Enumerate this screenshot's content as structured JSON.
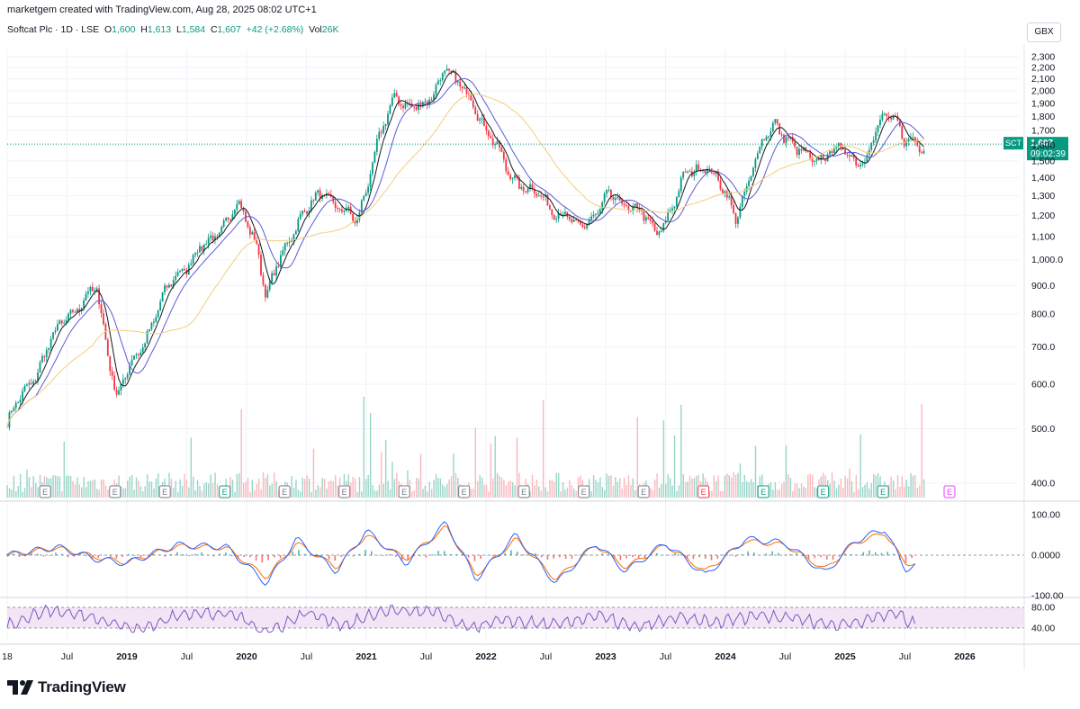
{
  "header": {
    "credit": "marketgem created with TradingView.com, Aug 28, 2025 08:02 UTC+1",
    "symbol_desc": "Softcat Plc · 1D · LSE",
    "open_label": "O",
    "open": "1,600",
    "high_label": "H",
    "high": "1,613",
    "low_label": "L",
    "low": "1,584",
    "close_label": "C",
    "close": "1,607",
    "change": "+42 (+2.68%)",
    "vol_label": "Vol",
    "vol": "26K",
    "currency": "GBX"
  },
  "price_tag": {
    "symbol": "SCT",
    "price": "1,607",
    "countdown": "09:02:39"
  },
  "footer": {
    "logo_text": "TradingView"
  },
  "colors": {
    "up": "#089981",
    "down": "#f23645",
    "ma_fast": "#131722",
    "ma_mid": "#5b5bd6",
    "ma_slow": "#f5cd7a",
    "macd": "#2962ff",
    "signal": "#ff6d00",
    "rsi": "#7e57c2",
    "rsi_band": "#f3e5f5",
    "earnings_gray": "#787b86",
    "earnings_green": "#089981",
    "earnings_red": "#f23645",
    "earnings_future": "#e040fb"
  },
  "chart_data": [
    {
      "type": "line",
      "title": "Softcat Plc · 1D · LSE",
      "scale": "log",
      "xlabel": "",
      "ylabel": "GBX",
      "ylim": [
        360,
        2300
      ],
      "y_ticks": [
        "2,300",
        "2,200",
        "2,100",
        "2,000",
        "1,900",
        "1,800",
        "1,700",
        "1,600",
        "1,500",
        "1,400",
        "1,300",
        "1,200",
        "1,100",
        "1,000.0",
        "900.0",
        "800.0",
        "700.0",
        "600.0",
        "500.0",
        "400.0"
      ],
      "y_tick_values": [
        2300,
        2200,
        2100,
        2000,
        1900,
        1800,
        1700,
        1600,
        1500,
        1400,
        1300,
        1200,
        1100,
        1000,
        900,
        800,
        700,
        600,
        500,
        400
      ],
      "x_ticks": [
        "18",
        "Jul",
        "2019",
        "Jul",
        "2020",
        "Jul",
        "2021",
        "Jul",
        "2022",
        "Jul",
        "2023",
        "Jul",
        "2024",
        "Jul",
        "2025",
        "Jul",
        "2026"
      ],
      "x_tick_dates": [
        "2018-01",
        "2018-07",
        "2019-01",
        "2019-07",
        "2020-01",
        "2020-07",
        "2021-01",
        "2021-07",
        "2022-01",
        "2022-07",
        "2023-01",
        "2023-07",
        "2024-01",
        "2024-07",
        "2025-01",
        "2025-07",
        "2026-01"
      ],
      "x_tick_bold": [
        false,
        false,
        true,
        false,
        true,
        false,
        true,
        false,
        true,
        false,
        true,
        false,
        true,
        false,
        true,
        false,
        true
      ],
      "x": [
        "2018-01",
        "2018-04",
        "2018-07",
        "2018-10",
        "2018-12",
        "2019-03",
        "2019-06",
        "2019-09",
        "2019-12",
        "2020-02",
        "2020-03",
        "2020-06",
        "2020-09",
        "2020-12",
        "2021-02",
        "2021-04",
        "2021-07",
        "2021-09",
        "2021-10",
        "2021-12",
        "2022-03",
        "2022-06",
        "2022-09",
        "2022-10",
        "2023-01",
        "2023-04",
        "2023-06",
        "2023-09",
        "2023-11",
        "2024-02",
        "2024-05",
        "2024-06",
        "2024-08",
        "2024-11",
        "2025-01",
        "2025-03",
        "2025-05",
        "2025-06",
        "2025-07",
        "2025-08"
      ],
      "series": [
        {
          "values": [
            510,
            640,
            800,
            880,
            570,
            740,
            950,
            1060,
            1250,
            1080,
            860,
            1180,
            1320,
            1150,
            1600,
            1950,
            1850,
            2250,
            2050,
            1880,
            1450,
            1300,
            1200,
            1120,
            1280,
            1250,
            1100,
            1400,
            1500,
            1200,
            1650,
            1780,
            1550,
            1520,
            1580,
            1480,
            1850,
            1800,
            1600,
            1607
          ]
        }
      ]
    },
    {
      "type": "line",
      "title": "",
      "ylim": [
        -100,
        100
      ],
      "y_ticks": [
        "100.00",
        "0.0000",
        "-100.00"
      ],
      "y_tick_values": [
        100,
        0,
        -100
      ],
      "x": [
        "2018-01",
        "2018-06",
        "2018-10",
        "2019-01",
        "2019-06",
        "2019-11",
        "2020-03",
        "2020-06",
        "2020-10",
        "2021-01",
        "2021-05",
        "2021-09",
        "2021-12",
        "2022-04",
        "2022-08",
        "2022-12",
        "2023-03",
        "2023-07",
        "2023-11",
        "2024-03",
        "2024-07",
        "2024-11",
        "2025-02",
        "2025-05",
        "2025-07",
        "2025-08"
      ],
      "series": [
        {
          "values": [
            0,
            20,
            -10,
            -20,
            25,
            20,
            -70,
            40,
            -40,
            60,
            -20,
            80,
            -60,
            50,
            -70,
            30,
            -40,
            30,
            -50,
            40,
            30,
            -45,
            35,
            65,
            -35,
            -25
          ]
        },
        {
          "values": [
            0,
            18,
            -5,
            -18,
            22,
            18,
            -55,
            30,
            -30,
            50,
            -10,
            70,
            -50,
            40,
            -60,
            25,
            -30,
            25,
            -40,
            35,
            25,
            -35,
            30,
            55,
            -20,
            -20
          ]
        }
      ]
    },
    {
      "type": "line",
      "title": "",
      "ylim": [
        30,
        85
      ],
      "y_ticks": [
        "80.00",
        "40.00"
      ],
      "y_tick_values": [
        80,
        40
      ],
      "x": [
        "2018-01",
        "2018-05",
        "2018-10",
        "2019-02",
        "2019-07",
        "2019-12",
        "2020-03",
        "2020-07",
        "2020-11",
        "2021-03",
        "2021-08",
        "2021-11",
        "2022-03",
        "2022-08",
        "2022-12",
        "2023-04",
        "2023-08",
        "2023-12",
        "2024-04",
        "2024-08",
        "2024-12",
        "2025-03",
        "2025-06",
        "2025-08"
      ],
      "series": [
        {
          "values": [
            45,
            75,
            60,
            35,
            70,
            65,
            30,
            70,
            45,
            75,
            70,
            40,
            55,
            45,
            65,
            40,
            60,
            50,
            65,
            60,
            45,
            55,
            70,
            45
          ]
        }
      ]
    }
  ]
}
